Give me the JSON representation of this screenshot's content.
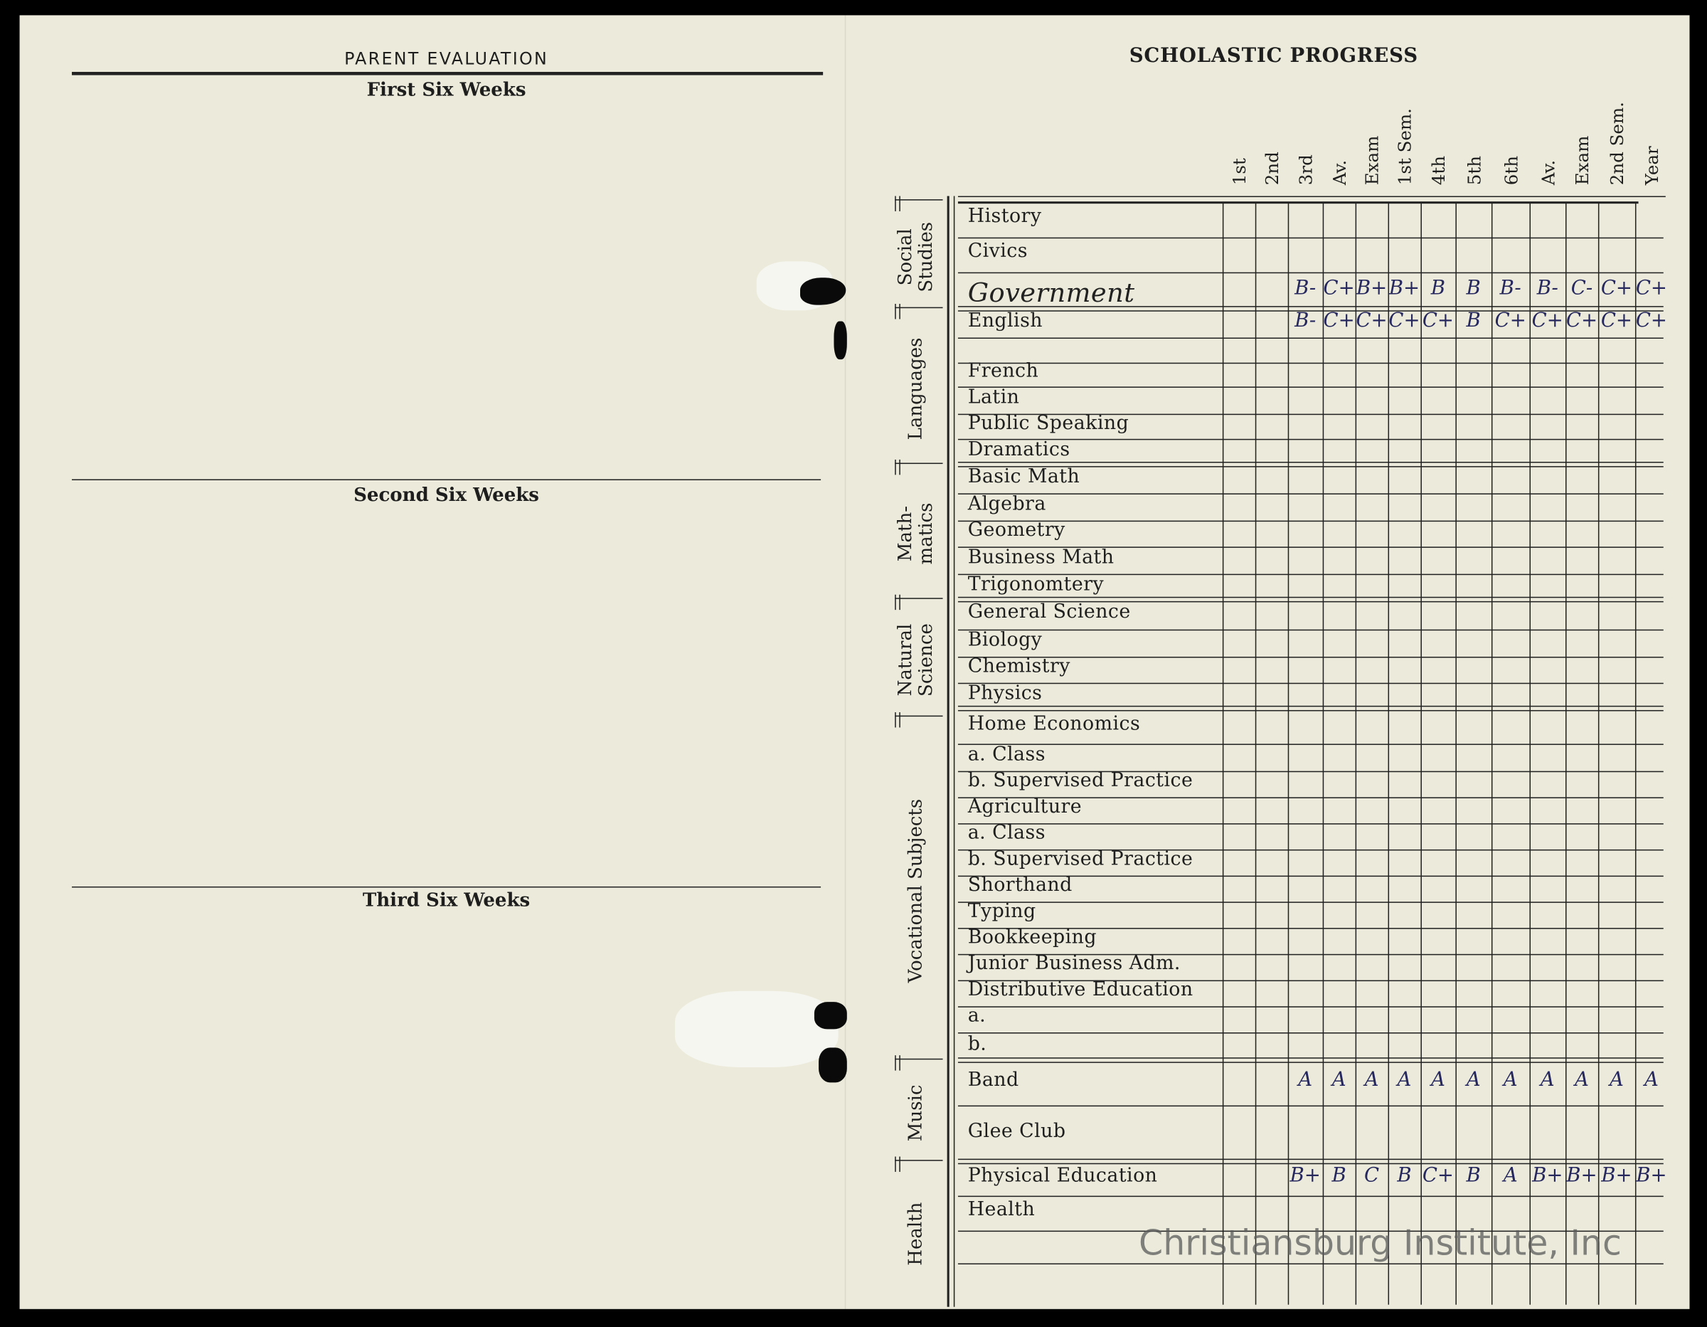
{
  "left_page": {
    "title": "PARENT EVALUATION",
    "sections": [
      "First Six Weeks",
      "Second Six Weeks",
      "Third Six Weeks"
    ]
  },
  "right_page": {
    "title": "SCHOLASTIC PROGRESS",
    "columns": [
      "1st",
      "2nd",
      "3rd",
      "Av.",
      "Exam",
      "1st Sem.",
      "4th",
      "5th",
      "6th",
      "Av.",
      "Exam",
      "2nd Sem.",
      "Year"
    ],
    "categories": [
      "Social Studies",
      "Languages",
      "Math- matics",
      "Natural Science",
      "Vocational Subjects",
      "Music",
      "Health"
    ],
    "subjects": [
      {
        "name": "History",
        "grades": []
      },
      {
        "name": "Civics",
        "grades": []
      },
      {
        "name": "Government",
        "handwritten": true,
        "grades": [
          "",
          "",
          "B-",
          "C+",
          "B+",
          "B+",
          "B",
          "B",
          "B-",
          "B-",
          "C-",
          "C+",
          "C+"
        ]
      },
      {
        "name": "English",
        "grades": [
          "",
          "",
          "B-",
          "C+",
          "C+",
          "C+",
          "C+",
          "B",
          "C+",
          "C+",
          "C+",
          "C+",
          "C+"
        ]
      },
      {
        "name": "",
        "grades": []
      },
      {
        "name": "French",
        "grades": []
      },
      {
        "name": "Latin",
        "grades": []
      },
      {
        "name": "Public Speaking",
        "grades": []
      },
      {
        "name": "Dramatics",
        "grades": []
      },
      {
        "name": "Basic Math",
        "grades": []
      },
      {
        "name": "Algebra",
        "grades": []
      },
      {
        "name": "Geometry",
        "grades": []
      },
      {
        "name": "Business Math",
        "grades": []
      },
      {
        "name": "Trigonomtery",
        "grades": []
      },
      {
        "name": "General Science",
        "grades": []
      },
      {
        "name": "Biology",
        "grades": []
      },
      {
        "name": "Chemistry",
        "grades": []
      },
      {
        "name": "Physics",
        "grades": []
      },
      {
        "name": "Home Economics",
        "grades": []
      },
      {
        "name": "a. Class",
        "grades": []
      },
      {
        "name": "b. Supervised Practice",
        "grades": []
      },
      {
        "name": "Agriculture",
        "grades": []
      },
      {
        "name": "a. Class",
        "grades": []
      },
      {
        "name": "b. Supervised Practice",
        "grades": []
      },
      {
        "name": "Shorthand",
        "grades": []
      },
      {
        "name": "Typing",
        "grades": []
      },
      {
        "name": "Bookkeeping",
        "grades": []
      },
      {
        "name": "Junior Business Adm.",
        "grades": []
      },
      {
        "name": "Distributive Education",
        "grades": []
      },
      {
        "name": "a.",
        "grades": []
      },
      {
        "name": "b.",
        "grades": []
      },
      {
        "name": "Band",
        "grades": [
          "",
          "",
          "A",
          "A",
          "A",
          "A",
          "A",
          "A",
          "A",
          "A",
          "A",
          "A",
          "A"
        ]
      },
      {
        "name": "Glee Club",
        "grades": []
      },
      {
        "name": "Physical Education",
        "grades": [
          "",
          "",
          "B+",
          "B",
          "C",
          "B",
          "C+",
          "B",
          "A",
          "B+",
          "B+",
          "B+",
          "B+"
        ]
      },
      {
        "name": "Health",
        "grades": []
      },
      {
        "name": "",
        "grades": []
      }
    ]
  },
  "watermark": "Christiansburg Institute, Inc",
  "colors": {
    "paper": "#ecebdb",
    "ink": "#26285e",
    "background": "#000000"
  }
}
